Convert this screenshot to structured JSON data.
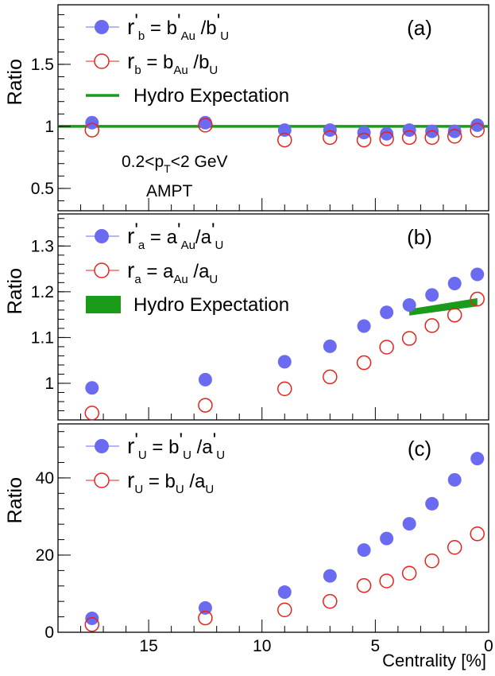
{
  "chart_data": {
    "type": "scatter",
    "x_axis": {
      "label": "Centrality [%]",
      "range": [
        19,
        0
      ],
      "ticks": [
        15,
        10,
        5,
        0
      ],
      "tick_labels": [
        "15",
        "10",
        "5",
        "0"
      ]
    },
    "centralities": [
      17.5,
      12.5,
      9,
      7,
      5.5,
      4.5,
      3.5,
      2.5,
      1.5,
      0.5
    ],
    "panels": [
      {
        "id": "a",
        "label": "(a)",
        "ylabel": "Ratio",
        "ylim": [
          0.32,
          1.98
        ],
        "ticks": [
          0.5,
          1,
          1.5
        ],
        "tick_labels": [
          "0.5",
          "1",
          "1.5"
        ],
        "annotation": {
          "line1_main": "0.2<p",
          "line1_sub": "T",
          "line1_rest": "<2 GeV",
          "line2": "AMPT"
        },
        "series": [
          {
            "name": "r'_b = b'_Au / b'_U",
            "marker": "filled-circle",
            "color": "#6b6bf2",
            "values": [
              1.03,
              1.03,
              0.97,
              0.97,
              0.95,
              0.94,
              0.97,
              0.96,
              0.96,
              1.01
            ]
          },
          {
            "name": "r_b = b_Au / b_U",
            "marker": "open-circle",
            "color": "#e8221b",
            "values": [
              0.97,
              1.01,
              0.89,
              0.91,
              0.89,
              0.9,
              0.91,
              0.91,
              0.92,
              0.97
            ]
          }
        ],
        "hydro": {
          "kind": "line",
          "color": "#1a9c1a",
          "y": 1.0
        },
        "legend": [
          {
            "sym": "filled",
            "main": "r",
            "sup": "'",
            "sub": "b",
            "eq": " = b",
            "sup2": "'",
            "sub2": "Au",
            "tail": " /b",
            "sup3": "'",
            "sub3": "U"
          },
          {
            "sym": "open",
            "main": "r",
            "sub": "b",
            "eq": " = b",
            "sub2": "Au",
            "tail": " /b",
            "sub3": "U"
          },
          {
            "sym": "line",
            "text": "Hydro Expectation"
          }
        ]
      },
      {
        "id": "b",
        "label": "(b)",
        "ylabel": "Ratio",
        "ylim": [
          0.92,
          1.37
        ],
        "ticks": [
          1.0,
          1.1,
          1.2,
          1.3
        ],
        "tick_labels": [
          "1",
          "1.1",
          "1.2",
          "1.3"
        ],
        "series": [
          {
            "name": "r'_a = a'_Au / a'_U",
            "marker": "filled-circle",
            "color": "#6b6bf2",
            "values": [
              0.99,
              1.008,
              1.047,
              1.081,
              1.125,
              1.155,
              1.171,
              1.193,
              1.218,
              1.238
            ]
          },
          {
            "name": "r_a = a_Au / a_U",
            "marker": "open-circle",
            "color": "#e8221b",
            "values": [
              0.935,
              0.952,
              0.988,
              1.014,
              1.045,
              1.079,
              1.098,
              1.126,
              1.149,
              1.184
            ]
          }
        ],
        "hydro": {
          "kind": "band",
          "color": "#1a9c1a",
          "x": [
            3.5,
            0.5
          ],
          "y_low": [
            1.148,
            1.168
          ],
          "y_high": [
            1.162,
            1.186
          ]
        },
        "legend": [
          {
            "sym": "filled",
            "main": "r",
            "sup": "'",
            "sub": "a",
            "eq": " = a",
            "sup2": "'",
            "sub2": "Au",
            "tail": "/a",
            "sup3": "'",
            "sub3": "U"
          },
          {
            "sym": "open",
            "main": "r",
            "sub": "a",
            "eq": " = a",
            "sub2": "Au",
            "tail": " /a",
            "sub3": "U"
          },
          {
            "sym": "band",
            "text": "Hydro Expectation"
          }
        ]
      },
      {
        "id": "c",
        "label": "(c)",
        "ylabel": "Ratio",
        "ylim": [
          0,
          54
        ],
        "ticks": [
          0,
          20,
          40
        ],
        "tick_labels": [
          "0",
          "20",
          "40"
        ],
        "series": [
          {
            "name": "r'_U = b'_U / a'_U",
            "marker": "filled-circle",
            "color": "#6b6bf2",
            "values": [
              3.6,
              6.3,
              10.4,
              14.6,
              21.3,
              24.3,
              28.1,
              33.3,
              39.5,
              45.0
            ]
          },
          {
            "name": "r_U = b_U / a_U",
            "marker": "open-circle",
            "color": "#e8221b",
            "values": [
              2.0,
              3.7,
              5.8,
              8.0,
              12.1,
              13.3,
              15.3,
              18.5,
              22.0,
              25.5
            ]
          }
        ],
        "legend": [
          {
            "sym": "filled",
            "main": "r",
            "sup": "'",
            "sub": "U",
            "eq": " = b",
            "sup2": "'",
            "sub2": "U",
            "tail": " /a",
            "sup3": "'",
            "sub3": "U"
          },
          {
            "sym": "open",
            "main": "r",
            "sub": "U",
            "eq": " = b",
            "sub2": "U",
            "tail": " /a",
            "sub3": "U"
          }
        ]
      }
    ]
  }
}
